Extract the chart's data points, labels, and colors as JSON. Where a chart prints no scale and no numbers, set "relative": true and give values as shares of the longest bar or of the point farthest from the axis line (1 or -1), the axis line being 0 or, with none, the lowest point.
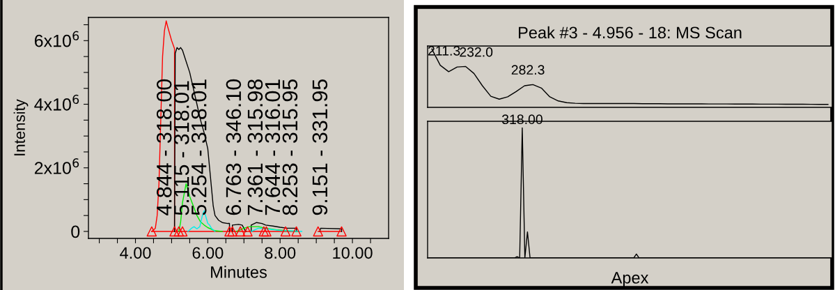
{
  "chart_data": [
    {
      "type": "line",
      "xlabel": "Minutes",
      "ylabel": "Intensity",
      "xlim": [
        2.7,
        11.0
      ],
      "xticks": [
        {
          "value": 3.0,
          "label": null
        },
        {
          "value": 3.5,
          "label": null
        },
        {
          "value": 4.0,
          "label": "4.00"
        },
        {
          "value": 4.5,
          "label": null
        },
        {
          "value": 5.0,
          "label": null
        },
        {
          "value": 5.5,
          "label": null
        },
        {
          "value": 6.0,
          "label": "6.00"
        },
        {
          "value": 6.5,
          "label": null
        },
        {
          "value": 7.0,
          "label": null
        },
        {
          "value": 7.5,
          "label": null
        },
        {
          "value": 8.0,
          "label": "8.00"
        },
        {
          "value": 8.5,
          "label": null
        },
        {
          "value": 9.0,
          "label": null
        },
        {
          "value": 9.5,
          "label": null
        },
        {
          "value": 10.0,
          "label": "10.00"
        },
        {
          "value": 10.5,
          "label": null
        }
      ],
      "ylim": [
        -220000,
        6730000
      ],
      "yticks": [
        0,
        {
          "value": 500000,
          "label": null
        },
        {
          "value": 1000000,
          "label": null
        },
        {
          "value": 1500000,
          "label": null
        },
        {
          "value": 2000000,
          "label": "2x10$^{6}$"
        },
        {
          "value": 2500000,
          "label": null
        },
        {
          "value": 3000000,
          "label": null
        },
        {
          "value": 3500000,
          "label": null
        },
        {
          "value": 4000000,
          "label": "4x10$^{6}$"
        },
        {
          "value": 4500000,
          "label": null
        },
        {
          "value": 5000000,
          "label": null
        },
        {
          "value": 5500000,
          "label": null
        },
        {
          "value": 6000000,
          "label": "6x10$^{6}$"
        },
        {
          "value": 6500000,
          "label": null
        }
      ],
      "grid": false,
      "legend": false,
      "series": [
        {
          "type": "line",
          "color": "#ff0000",
          "x": [
            4.45,
            6.6,
            6.62,
            6.65,
            8.5,
            8.7,
            9.05,
            9.7
          ],
          "values": [
            0,
            0,
            null,
            0,
            0,
            null,
            0,
            0
          ]
        },
        {
          "type": "line",
          "color": "#ff0000",
          "x": [
            4.45,
            4.55,
            4.6,
            4.65,
            4.7,
            4.75,
            4.8,
            4.85,
            4.9,
            5.0,
            5.08,
            5.08
          ],
          "values": [
            0,
            100000,
            500000,
            1500000,
            3500000,
            5500000,
            6300000,
            6620000,
            6400000,
            6000000,
            5750000,
            0
          ]
        },
        {
          "type": "line",
          "color": "#000000",
          "x": [
            5.08,
            5.1,
            5.15,
            5.2,
            5.25,
            5.3,
            5.4,
            5.5,
            5.6,
            5.7,
            5.8,
            5.9,
            6.0,
            6.1,
            6.15,
            6.2,
            6.3,
            6.4,
            6.55,
            6.6,
            6.6,
            6.64,
            6.68,
            6.68,
            6.85,
            6.95,
            7.05,
            7.1,
            7.2,
            7.2,
            7.35,
            7.5,
            7.6,
            7.8,
            8.0,
            8.2,
            8.45,
            8.45,
            8.8,
            9.1,
            9.12,
            9.7,
            9.7
          ],
          "values": [
            0,
            5600000,
            5780000,
            5720000,
            5780000,
            5700000,
            5350000,
            5000000,
            4500000,
            4000000,
            3500000,
            3100000,
            2600000,
            1400000,
            800000,
            500000,
            350000,
            280000,
            250000,
            250000,
            0,
            null,
            0,
            200000,
            220000,
            200000,
            0,
            null,
            0,
            200000,
            280000,
            250000,
            200000,
            170000,
            130000,
            100000,
            100000,
            0,
            null,
            0,
            100000,
            80000,
            0
          ]
        },
        {
          "type": "line",
          "color": "#00ee00",
          "x": [
            5.2,
            5.25,
            5.3,
            5.4,
            5.5,
            5.6,
            5.7,
            5.8,
            5.9,
            6.0,
            6.2,
            6.4,
            6.6,
            6.8,
            7.0,
            7.15,
            7.4,
            7.6,
            7.9,
            8.2,
            8.5
          ],
          "values": [
            0,
            300000,
            900000,
            1500000,
            1100000,
            800000,
            500000,
            300000,
            200000,
            120000,
            20000,
            0,
            null,
            0,
            100000,
            150000,
            150000,
            100000,
            50000,
            20000,
            0
          ]
        },
        {
          "type": "line",
          "color": "#00eeee",
          "x": [
            5.45,
            5.55,
            5.62,
            5.7,
            5.78,
            5.85,
            5.9,
            5.95,
            6.0,
            6.05,
            6.1,
            6.2,
            6.7,
            7.2,
            7.4,
            7.6,
            8.0,
            8.6
          ],
          "values": [
            0,
            100000,
            150000,
            80000,
            150000,
            500000,
            650000,
            450000,
            250000,
            200000,
            100000,
            0,
            null,
            0,
            100000,
            80000,
            30000,
            0
          ]
        },
        {
          "type": "scatter",
          "color": "#ff0000",
          "marker": "triangle",
          "x": [
            4.45,
            5.08,
            5.2,
            5.3,
            6.6,
            6.68,
            6.9,
            7.1,
            7.55,
            7.62,
            8.15,
            8.45,
            9.05,
            9.7
          ],
          "values": [
            0,
            0,
            0,
            0,
            0,
            0,
            0,
            0,
            0,
            0,
            0,
            0,
            0,
            0
          ]
        }
      ],
      "annotations": [
        {
          "text": "4.844 - 318.00",
          "x": 4.844,
          "y": 0
        },
        {
          "text": "5.115 - 318.01",
          "x": 5.115,
          "y": 0
        },
        {
          "text": "5.254 - 318.01",
          "x": 5.254,
          "y": 0
        },
        {
          "text": "6.763 - 346.10",
          "x": 6.763,
          "y": 0
        },
        {
          "text": "7.361 - 315.98",
          "x": 7.361,
          "y": 0
        },
        {
          "text": "7.644 - 316.01",
          "x": 7.644,
          "y": 0
        },
        {
          "text": "8.253 - 315.95",
          "x": 8.253,
          "y": 0
        },
        {
          "text": "9.151 - 331.95",
          "x": 9.151,
          "y": 0
        }
      ]
    },
    {
      "type": "line",
      "title": "Peak #3 - 4.956 - 18: MS Scan",
      "relative": true,
      "tick_labels": false,
      "legend": false,
      "grid": false,
      "categories": [
        null,
        null,
        null,
        null,
        null,
        null,
        null,
        null,
        null,
        null,
        null,
        null,
        null,
        null,
        null,
        null,
        null,
        null,
        null,
        null,
        null,
        null,
        null,
        null,
        null,
        null,
        null,
        null,
        null,
        null,
        null,
        null,
        null,
        null,
        null,
        null,
        null,
        null,
        null,
        null,
        null,
        null,
        null,
        null,
        null,
        null,
        null,
        null
      ],
      "series": [
        {
          "color": "#000000",
          "values": [
            1.0,
            0.72,
            0.61,
            0.69,
            0.7,
            0.58,
            0.37,
            0.19,
            0.14,
            0.18,
            0.27,
            0.37,
            0.39,
            0.33,
            0.18,
            0.11,
            0.08,
            0.07,
            0.065,
            0.065,
            0.065,
            0.065,
            0.065,
            0.065,
            0.065,
            0.062,
            0.062,
            0.062,
            0.06,
            0.06,
            0.06,
            0.06,
            0.06,
            0.058,
            0.058,
            0.058,
            0.056,
            0.056,
            0.056,
            0.055,
            0.055,
            0.055,
            0.054,
            0.054,
            0.053,
            0.052,
            0.051,
            0.05
          ]
        }
      ],
      "annotations": [
        "211.3",
        "232.0",
        "282.3"
      ]
    },
    {
      "type": "line",
      "xlabel": "Apex",
      "relative": true,
      "tick_labels": false,
      "legend": false,
      "grid": false,
      "categories": [
        null,
        null,
        null,
        null,
        null,
        null,
        null,
        null,
        null,
        null,
        null,
        null,
        null,
        null,
        null,
        null,
        null,
        null,
        null,
        null,
        null,
        null,
        null,
        null,
        null,
        null,
        null,
        null,
        null,
        null,
        null,
        null,
        null,
        null,
        null,
        null,
        null,
        null,
        null,
        null,
        null,
        null,
        null,
        null,
        null,
        null,
        null,
        null,
        null,
        null,
        null,
        null,
        null,
        null,
        null,
        null,
        null,
        null,
        null,
        null,
        null,
        null,
        null,
        null,
        null,
        null,
        null,
        null,
        null,
        null,
        null,
        null,
        null,
        null,
        null,
        null,
        null,
        null,
        null,
        null,
        null,
        null,
        null,
        null,
        null,
        null,
        null,
        null,
        null,
        null,
        null,
        null,
        null,
        null,
        null,
        null,
        null,
        null,
        null,
        null,
        null,
        null,
        null,
        null,
        null,
        null,
        null,
        null,
        null,
        null,
        null,
        null,
        null,
        null,
        null,
        null,
        null,
        null,
        null,
        null,
        null,
        null,
        null,
        null,
        null,
        null,
        null,
        null,
        null,
        null,
        null,
        null,
        null,
        null,
        null,
        null,
        null,
        null,
        null,
        null,
        null,
        null,
        null,
        null,
        null,
        null,
        null,
        null,
        null,
        null,
        null,
        null,
        null,
        null,
        null,
        null
      ],
      "series": [
        {
          "color": "#000000",
          "values": [
            0,
            0,
            0,
            0,
            0,
            0,
            0,
            0,
            0,
            0,
            0,
            0,
            0,
            0,
            0,
            0,
            0,
            0,
            0,
            0,
            0,
            0,
            0,
            0,
            0,
            0,
            0,
            0,
            0,
            0,
            0,
            0,
            0,
            0,
            0.01,
            0,
            1.0,
            0,
            0.2,
            0,
            0,
            0,
            0,
            0,
            0,
            0,
            0,
            0,
            0,
            0,
            0,
            0,
            0,
            0,
            0,
            0,
            0,
            0,
            0,
            0,
            0,
            0,
            0,
            0,
            0,
            0,
            0,
            0,
            0,
            0,
            0,
            0,
            0,
            0,
            0,
            0,
            0,
            0,
            0,
            0,
            0.03,
            0,
            0,
            0,
            0,
            0,
            0,
            0,
            0,
            0,
            0,
            0,
            0,
            0,
            0,
            0,
            0,
            0,
            0,
            0,
            0,
            0,
            0,
            0,
            0,
            0,
            0,
            0,
            0,
            0,
            0,
            0,
            0,
            0,
            0,
            0,
            0,
            0,
            0,
            0,
            0,
            0,
            0,
            0,
            0,
            0,
            0,
            0,
            0,
            0,
            0,
            0,
            0,
            0,
            0,
            0,
            0,
            0,
            0,
            0,
            0,
            0,
            0,
            0,
            0,
            0,
            0,
            0,
            0,
            0,
            0,
            0,
            0,
            0,
            0,
            0
          ]
        }
      ],
      "annotations": [
        {
          "text": "318.00",
          "y": 1.0
        }
      ]
    }
  ]
}
